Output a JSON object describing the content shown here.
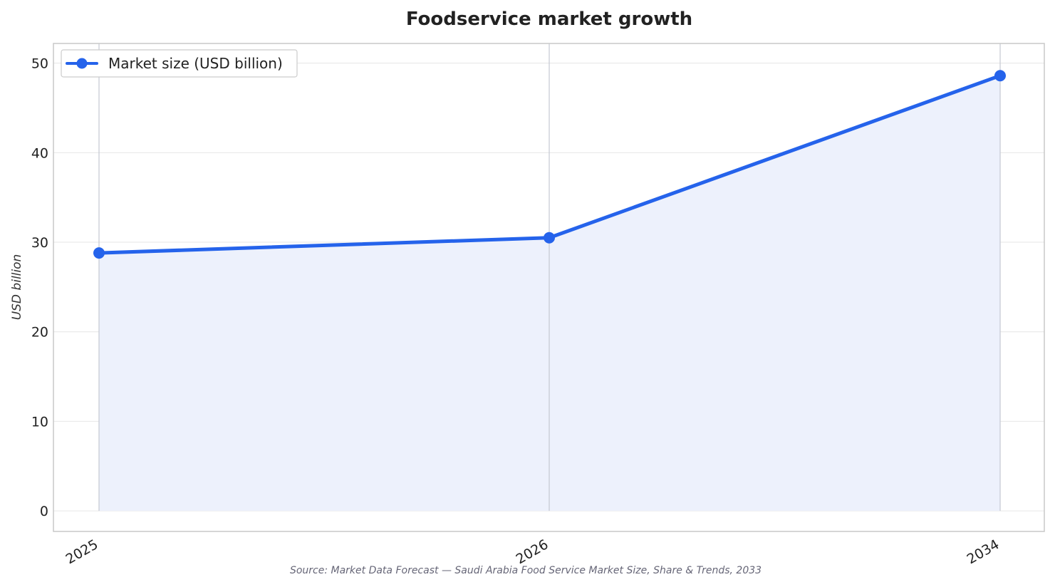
{
  "chart_data": {
    "type": "line",
    "title": "Foodservice market growth",
    "xlabel": "",
    "ylabel": "USD billion",
    "categories": [
      "2025",
      "2026",
      "2034"
    ],
    "series": [
      {
        "name": "Market size (USD billion)",
        "values": [
          28.8,
          30.5,
          48.6
        ]
      }
    ],
    "ylim": [
      -2.3,
      52.2
    ],
    "yticks": [
      0,
      10,
      20,
      30,
      40,
      50
    ],
    "grid": true,
    "area_fill": true,
    "legend_position": "top-left",
    "source": "Source: Market Data Forecast — Saudi Arabia Food Service Market Size, Share & Trends, 2033"
  },
  "colors": {
    "line": "#2563eb",
    "fill": "#edf1fc",
    "grid": "#e6e6e6",
    "vline": "#c4c8d2",
    "axes": "#c8c8c8"
  }
}
